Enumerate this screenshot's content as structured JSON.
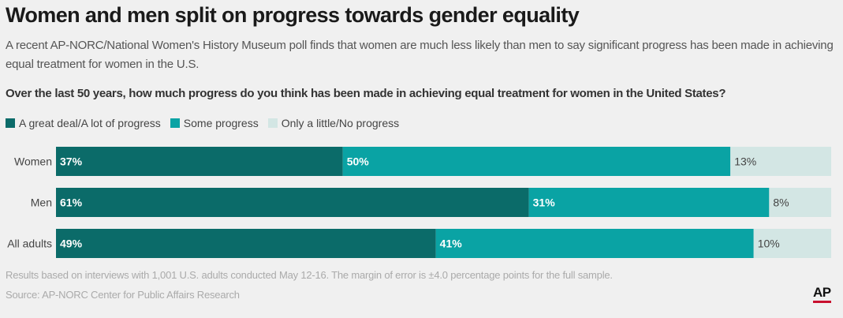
{
  "header": {
    "title": "Women and men split on progress towards gender equality",
    "subtitle": "A recent AP-NORC/National Women's History Museum poll finds that women are much less likely than men to say significant progress has been made in achieving equal treatment for women in the U.S.",
    "question": "Over the last 50 years, how much progress do you think has been made in achieving equal treatment for women in the United States?"
  },
  "footer": {
    "note": "Results based on interviews with 1,001 U.S. adults conducted May 12-16. The margin of error is ±4.0 percentage points for the full sample.",
    "source": "Source: AP-NORC Center for Public Affairs Research",
    "logo": "AP"
  },
  "colors": {
    "great_deal": "#0b6b69",
    "some": "#0aa3a4",
    "little": "#d3e6e4",
    "logo_accent": "#c8102e"
  },
  "chart_data": {
    "type": "bar",
    "orientation": "horizontal",
    "stacked": true,
    "categories": [
      "Women",
      "Men",
      "All adults"
    ],
    "series": [
      {
        "name": "A great deal/A lot of progress",
        "values": [
          37,
          61,
          49
        ],
        "color": "#0b6b69"
      },
      {
        "name": "Some progress",
        "values": [
          50,
          31,
          41
        ],
        "color": "#0aa3a4"
      },
      {
        "name": "Only a little/No progress",
        "values": [
          13,
          8,
          10
        ],
        "color": "#d3e6e4"
      }
    ],
    "data_labels": [
      [
        "37%",
        "50%",
        "13%"
      ],
      [
        "61%",
        "31%",
        "8%"
      ],
      [
        "49%",
        "41%",
        "10%"
      ]
    ],
    "xlim": [
      0,
      100
    ],
    "legend": "top-left",
    "grid": false
  }
}
